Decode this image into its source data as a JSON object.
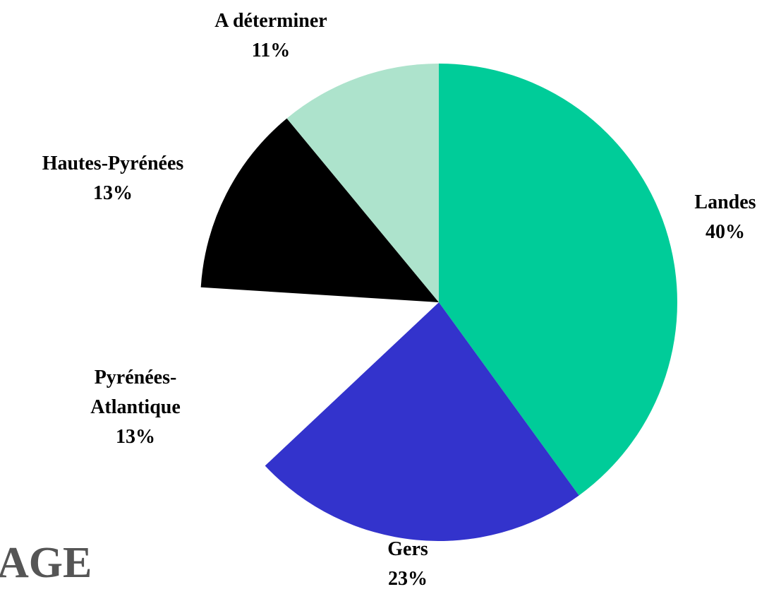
{
  "chart_data": {
    "type": "pie",
    "annotation": "AGE",
    "categories": [
      "Landes",
      "Gers",
      "Pyrénées-Atlantique",
      "Hautes-Pyrénées",
      "A déterminer"
    ],
    "values": [
      40,
      23,
      13,
      13,
      11
    ],
    "value_labels": [
      "40%",
      "23%",
      "13%",
      "13%",
      "11%"
    ],
    "colors": [
      "#00cc99",
      "#3333cc",
      "#ffffff",
      "#000000",
      "#ade3cc"
    ]
  }
}
